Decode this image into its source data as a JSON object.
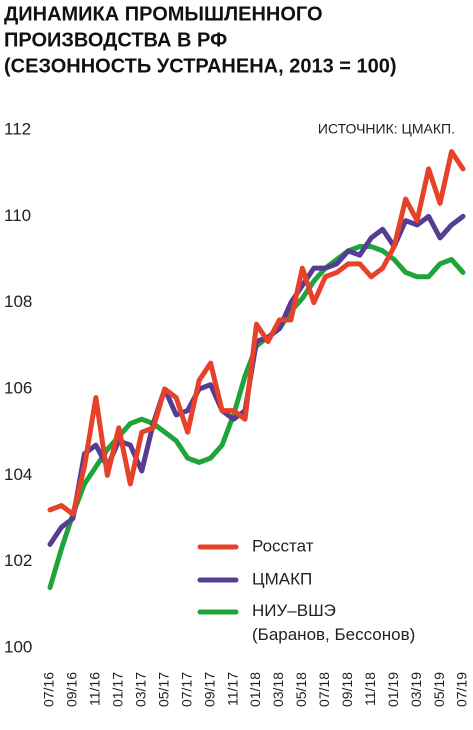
{
  "chart_data": {
    "type": "line",
    "title": [
      "ДИНАМИКА ПРОМЫШЛЕННОГО",
      "ПРОИЗВОДСТВА В РФ",
      "(СЕЗОННОСТЬ УСТРАНЕНА, 2013 = 100)"
    ],
    "source": "ИСТОЧНИК: ЦМАКП.",
    "categories": [
      "07/16",
      null,
      "09/16",
      null,
      "11/16",
      null,
      "01/17",
      null,
      "03/17",
      null,
      "05/17",
      null,
      "07/17",
      null,
      "09/17",
      null,
      "11/17",
      null,
      "01/18",
      null,
      "03/18",
      null,
      "05/18",
      null,
      "07/18",
      null,
      "09/18",
      null,
      "11/18",
      null,
      "01/19",
      null,
      "03/19",
      null,
      "05/19",
      null,
      "07/19"
    ],
    "ylim": [
      100,
      112
    ],
    "yticks": [
      100,
      102,
      104,
      106,
      108,
      110,
      112
    ],
    "grid": false,
    "legend": "lower right",
    "series": [
      {
        "name": "Росстат",
        "color": "#e8412a",
        "values": [
          103.2,
          103.3,
          103.1,
          104.2,
          105.8,
          104.0,
          105.1,
          103.8,
          105.0,
          105.1,
          106.0,
          105.8,
          105.0,
          106.2,
          106.6,
          105.5,
          105.5,
          105.3,
          107.5,
          107.1,
          107.6,
          107.6,
          108.8,
          108.0,
          108.6,
          108.7,
          108.9,
          108.9,
          108.6,
          108.8,
          109.3,
          110.4,
          109.9,
          111.1,
          110.3,
          111.5,
          111.1
        ]
      },
      {
        "name": "ЦМАКП",
        "color": "#553d94",
        "values": [
          102.4,
          102.8,
          103.0,
          104.5,
          104.7,
          104.2,
          104.8,
          104.7,
          104.1,
          105.2,
          106.0,
          105.4,
          105.5,
          106.0,
          106.1,
          105.5,
          105.3,
          105.5,
          107.1,
          107.2,
          107.4,
          108.0,
          108.4,
          108.8,
          108.8,
          108.9,
          109.2,
          109.1,
          109.5,
          109.7,
          109.3,
          109.9,
          109.8,
          110.0,
          109.5,
          109.8,
          110.0
        ]
      },
      {
        "name": [
          "НИУ–ВШЭ",
          "(Баранов, Бессонов)"
        ],
        "color": "#1fa43a",
        "values": [
          101.4,
          102.3,
          103.1,
          103.8,
          104.2,
          104.6,
          104.9,
          105.2,
          105.3,
          105.2,
          105.0,
          104.8,
          104.4,
          104.3,
          104.4,
          104.7,
          105.4,
          106.3,
          107.0,
          107.2,
          107.4,
          107.8,
          108.1,
          108.5,
          108.8,
          109.0,
          109.2,
          109.3,
          109.3,
          109.2,
          109.0,
          108.7,
          108.6,
          108.6,
          108.9,
          109.0,
          108.7
        ]
      }
    ]
  }
}
